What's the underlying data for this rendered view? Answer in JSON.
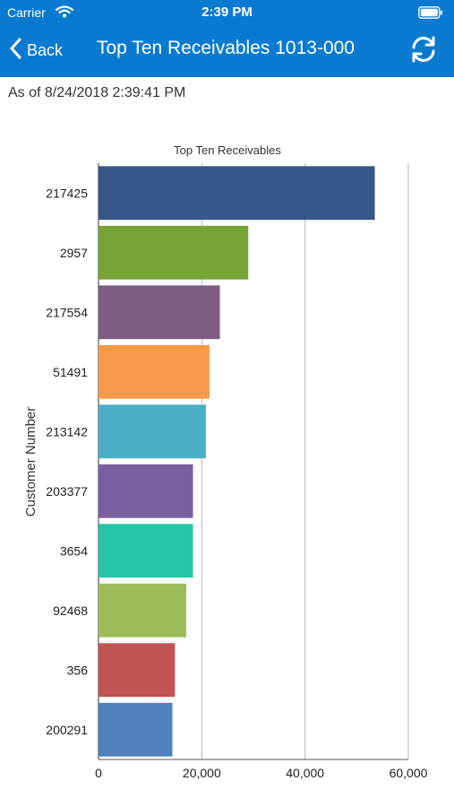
{
  "status_bar": {
    "carrier": "Carrier",
    "time": "2:39 PM"
  },
  "nav": {
    "back_label": "Back",
    "title": "Top Ten Receivables 1013-000"
  },
  "as_of": "As of 8/24/2018 2:39:41 PM",
  "colors": {
    "nav_background": "#0a7ad1",
    "nav_text": "#ffffff"
  },
  "icons": {
    "back": "chevron-left-icon",
    "refresh": "refresh-icon",
    "wifi": "wifi-icon",
    "battery": "battery-icon"
  },
  "chart_data": {
    "type": "bar",
    "orientation": "horizontal",
    "title": "Top Ten Receivables",
    "ylabel": "Customer Number",
    "xlabel": "",
    "categories": [
      "217425",
      "2957",
      "217554",
      "51491",
      "213142",
      "203377",
      "3654",
      "92468",
      "356",
      "200291"
    ],
    "values": [
      53500,
      29000,
      23500,
      21500,
      20800,
      18300,
      18300,
      17000,
      14800,
      14300
    ],
    "colors": [
      "#35578a",
      "#77a336",
      "#7f5d80",
      "#f69a48",
      "#4aaec7",
      "#7a5fa0",
      "#26c4a6",
      "#9cbd5a",
      "#c25353",
      "#4f81bd"
    ],
    "xlim": [
      0,
      60000
    ],
    "xticks": [
      "0",
      "20,000",
      "40,000",
      "60,000"
    ],
    "grid": true,
    "legend": "none"
  }
}
